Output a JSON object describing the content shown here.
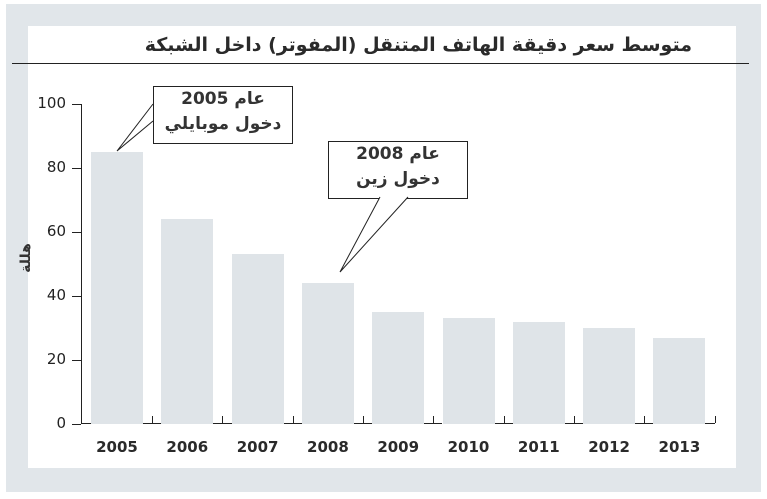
{
  "title": "متوسط سعر دقيقة الهاتف المتنقل (المفوتر) داخل الشبكة",
  "chart_data": {
    "type": "bar",
    "title": "متوسط سعر دقيقة الهاتف المتنقل (المفوتر) داخل الشبكة",
    "xlabel": "",
    "ylabel": "هللة",
    "ylim": [
      0,
      100
    ],
    "yticks": [
      "0",
      "20",
      "40",
      "60",
      "80",
      "100"
    ],
    "categories": [
      "2005",
      "2006",
      "2007",
      "2008",
      "2009",
      "2010",
      "2011",
      "2012",
      "2013"
    ],
    "values": [
      85,
      64,
      53,
      44,
      35,
      33,
      32,
      30,
      27
    ],
    "grid": false,
    "legend": null,
    "annotations": [
      {
        "target": "2005",
        "line1": "عام 2005",
        "line2": "دخول موبايلي"
      },
      {
        "target": "2008",
        "line1": "عام 2008",
        "line2": "دخول زين"
      }
    ],
    "bar_color": "#dfe4e8"
  }
}
